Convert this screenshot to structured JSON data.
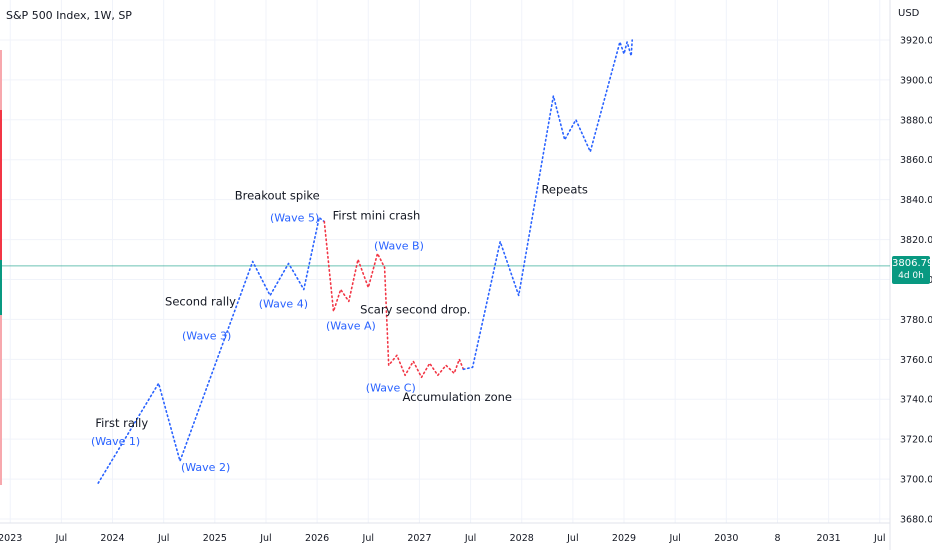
{
  "header": {
    "symbol_title": "S&P 500 Index, 1W, SP",
    "currency": "USD"
  },
  "price_tag": {
    "value": "3806.79",
    "countdown": "4d 0h"
  },
  "colors": {
    "up_dots": "#2962ff",
    "down_dots": "#f23645",
    "wave_label": "#2962ff",
    "annotation": "#131722",
    "last_price_line": "#089981",
    "grid": "#f0f3fa",
    "axis_text": "#131722",
    "left_strip_red": "#f23645",
    "left_strip_green": "#089981"
  },
  "chart_data": {
    "type": "line",
    "title": "S&P 500 Index, 1W, SP",
    "xlabel": "",
    "ylabel": "",
    "ylim": [
      3678,
      3928
    ],
    "grid": true,
    "last_price": 3806.79,
    "x_ticks": [
      "2023",
      "Jul",
      "2024",
      "Jul",
      "2025",
      "Jul",
      "2026",
      "Jul",
      "2027",
      "Jul",
      "2028",
      "Jul",
      "2029",
      "Jul",
      "2030",
      "8",
      "2031",
      "Jul"
    ],
    "x_tick_values": [
      2023.0,
      2023.5,
      2024.0,
      2024.5,
      2025.0,
      2025.5,
      2026.0,
      2026.5,
      2027.0,
      2027.5,
      2028.0,
      2028.5,
      2029.0,
      2029.5,
      2030.0,
      2030.5,
      2031.0,
      2031.5
    ],
    "xlim": [
      2022.9,
      2031.6
    ],
    "y_ticks": [
      3680,
      3700,
      3720,
      3740,
      3760,
      3780,
      3800,
      3820,
      3840,
      3860,
      3880,
      3900,
      3920
    ],
    "y_tick_labels": [
      "3680.00",
      "3700.00",
      "3720.00",
      "3740.00",
      "3760.00",
      "3780.00",
      "3800.00",
      "3820.00",
      "3840.00",
      "3860.00",
      "3880.00",
      "3900.00",
      "3920.00"
    ],
    "series": [
      {
        "color": "#2962ff",
        "points": [
          [
            2023.86,
            3698
          ],
          [
            2024.45,
            3748
          ],
          [
            2024.66,
            3709
          ],
          [
            2025.37,
            3809
          ],
          [
            2025.54,
            3792
          ],
          [
            2025.72,
            3808
          ],
          [
            2025.78,
            3803
          ],
          [
            2025.87,
            3795
          ],
          [
            2026.02,
            3831
          ],
          [
            2026.07,
            3829
          ]
        ]
      },
      {
        "color": "#f23645",
        "points": [
          [
            2026.07,
            3829
          ],
          [
            2026.16,
            3784
          ],
          [
            2026.23,
            3795
          ],
          [
            2026.31,
            3789
          ],
          [
            2026.4,
            3810
          ],
          [
            2026.5,
            3796
          ],
          [
            2026.59,
            3813
          ],
          [
            2026.66,
            3806
          ],
          [
            2026.7,
            3757
          ],
          [
            2026.78,
            3762
          ],
          [
            2026.86,
            3752
          ],
          [
            2026.94,
            3759
          ],
          [
            2027.02,
            3751
          ],
          [
            2027.1,
            3758
          ],
          [
            2027.18,
            3752
          ],
          [
            2027.26,
            3757
          ],
          [
            2027.34,
            3753
          ],
          [
            2027.39,
            3760
          ],
          [
            2027.43,
            3755
          ]
        ]
      },
      {
        "color": "#2962ff",
        "points": [
          [
            2027.43,
            3755
          ],
          [
            2027.52,
            3756
          ],
          [
            2027.79,
            3819
          ],
          [
            2027.97,
            3792
          ],
          [
            2028.31,
            3892
          ],
          [
            2028.42,
            3870
          ],
          [
            2028.53,
            3880
          ],
          [
            2028.67,
            3864
          ],
          [
            2028.96,
            3919
          ],
          [
            2029.0,
            3913
          ],
          [
            2029.03,
            3919
          ],
          [
            2029.07,
            3912
          ],
          [
            2029.08,
            3920
          ]
        ]
      }
    ],
    "annotations": [
      {
        "text": "First rally",
        "x": 2024.09,
        "y": 3726,
        "kind": "note"
      },
      {
        "text": "(Wave 1)",
        "x": 2024.03,
        "y": 3717,
        "kind": "wave"
      },
      {
        "text": "(Wave 2)",
        "x": 2024.91,
        "y": 3704,
        "kind": "wave"
      },
      {
        "text": "Second rally",
        "x": 2024.86,
        "y": 3787,
        "kind": "note"
      },
      {
        "text": "(Wave 3)",
        "x": 2024.92,
        "y": 3770,
        "kind": "wave"
      },
      {
        "text": "Breakout spike",
        "x": 2025.61,
        "y": 3840,
        "kind": "note"
      },
      {
        "text": "(Wave 5)",
        "x": 2025.78,
        "y": 3829,
        "kind": "wave"
      },
      {
        "text": "(Wave 4)",
        "x": 2025.67,
        "y": 3786,
        "kind": "wave"
      },
      {
        "text": "First mini crash",
        "x": 2026.58,
        "y": 3830,
        "kind": "note"
      },
      {
        "text": "(Wave B)",
        "x": 2026.8,
        "y": 3815,
        "kind": "wave"
      },
      {
        "text": "(Wave A)",
        "x": 2026.33,
        "y": 3775,
        "kind": "wave"
      },
      {
        "text": "Scary second drop.",
        "x": 2026.96,
        "y": 3783,
        "kind": "note"
      },
      {
        "text": "(Wave C)",
        "x": 2026.72,
        "y": 3744,
        "kind": "wave"
      },
      {
        "text": "Accumulation zone",
        "x": 2027.37,
        "y": 3739,
        "kind": "note"
      },
      {
        "text": "Repeats",
        "x": 2028.42,
        "y": 3843,
        "kind": "note"
      }
    ]
  }
}
